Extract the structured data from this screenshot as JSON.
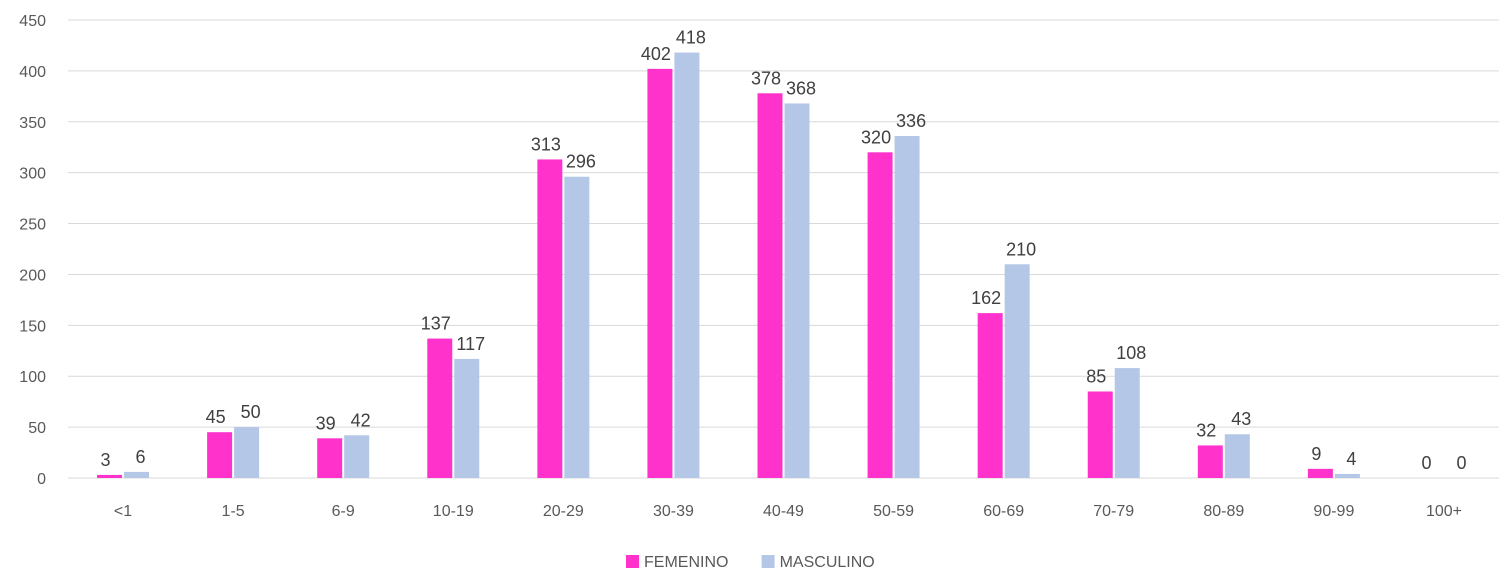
{
  "chart_data": {
    "type": "bar",
    "categories": [
      "<1",
      "1-5",
      "6-9",
      "10-19",
      "20-29",
      "30-39",
      "40-49",
      "50-59",
      "60-69",
      "70-79",
      "80-89",
      "90-99",
      "100+"
    ],
    "series": [
      {
        "name": "FEMENINO",
        "color": "#ff33cc",
        "values": [
          3,
          45,
          39,
          137,
          313,
          402,
          378,
          320,
          162,
          85,
          32,
          9,
          0
        ]
      },
      {
        "name": "MASCULINO",
        "color": "#b4c7e7",
        "values": [
          6,
          50,
          42,
          117,
          296,
          418,
          368,
          336,
          210,
          108,
          43,
          4,
          0
        ]
      }
    ],
    "ylim": [
      0,
      450
    ],
    "yticks": [
      0,
      50,
      100,
      150,
      200,
      250,
      300,
      350,
      400,
      450
    ],
    "grid": true,
    "legend": "bottom-center"
  }
}
